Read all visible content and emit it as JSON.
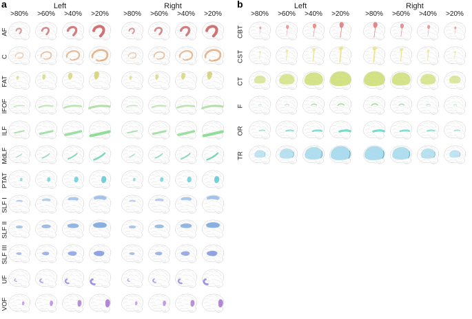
{
  "figure": {
    "brain_outline_color": "#c7c7c7",
    "brain_fill_color": "#fdfdfd",
    "gyri_color": "#e2e2e2",
    "threshold_scales": [
      0.55,
      0.73,
      0.9,
      1.08
    ],
    "panels": [
      {
        "label": "a",
        "hemispheres": [
          "Left",
          "Right"
        ],
        "thresholds": [
          ">80%",
          ">60%",
          ">40%",
          ">20%"
        ],
        "right_block_order": "ascending",
        "tracts": [
          {
            "label": "AF",
            "color": "#c95c5c",
            "shape": "af"
          },
          {
            "label": "C",
            "color": "#e2a97a",
            "shape": "cingulum"
          },
          {
            "label": "FAT",
            "color": "#d3cd66",
            "shape": "fat"
          },
          {
            "label": "IFOF",
            "color": "#a8dc99",
            "shape": "ifof"
          },
          {
            "label": "ILF",
            "color": "#80d788",
            "shape": "ilf"
          },
          {
            "label": "MdLF",
            "color": "#66cfac",
            "shape": "mdlf"
          },
          {
            "label": "PTAT",
            "color": "#50c6cf",
            "shape": "ptat"
          },
          {
            "label": "SLF I",
            "color": "#8cb6e8",
            "shape": "slf1"
          },
          {
            "label": "SLF II",
            "color": "#6f9ed9",
            "shape": "slf2"
          },
          {
            "label": "SLF III",
            "color": "#7590dd",
            "shape": "slf3"
          },
          {
            "label": "UF",
            "color": "#8f81dd",
            "shape": "uf"
          },
          {
            "label": "VOF",
            "color": "#a16bce",
            "shape": "vof"
          }
        ]
      },
      {
        "label": "b",
        "hemispheres": [
          "Left",
          "Right"
        ],
        "thresholds": [
          ">80%",
          ">60%",
          ">40%",
          ">20%"
        ],
        "right_block_order": "descending",
        "tracts": [
          {
            "label": "CBT",
            "color": "#de6b6b",
            "shape": "cbt"
          },
          {
            "label": "CST",
            "color": "#e9e386",
            "shape": "cst"
          },
          {
            "label": "CT",
            "color": "#c6da62",
            "shape": "ct"
          },
          {
            "label": "F",
            "color": "#83cd85",
            "shape": "fornix"
          },
          {
            "label": "OR",
            "color": "#5ed9c3",
            "shape": "or"
          },
          {
            "label": "TR",
            "color": "#96d2e9",
            "shape": "tr",
            "edge_color": "#57a8cf"
          }
        ]
      }
    ]
  }
}
